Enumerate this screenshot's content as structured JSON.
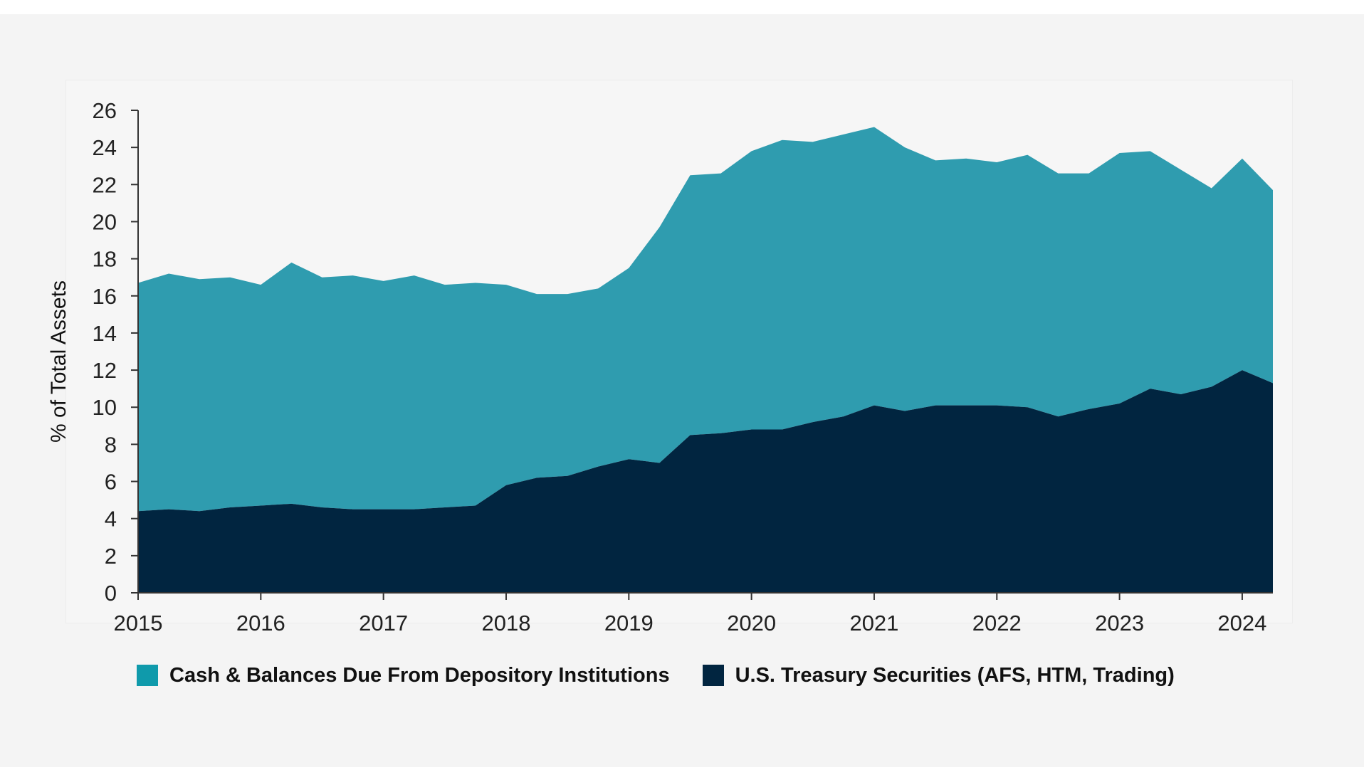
{
  "chart_data": {
    "type": "area",
    "stacked": true,
    "ylabel": "% of Total Assets",
    "ylim": [
      0,
      26
    ],
    "yticks": [
      0,
      2,
      4,
      6,
      8,
      10,
      12,
      14,
      16,
      18,
      20,
      22,
      24,
      26
    ],
    "xlim": [
      2015,
      2024.25
    ],
    "xticks": [
      2015,
      2016,
      2017,
      2018,
      2019,
      2020,
      2021,
      2022,
      2023,
      2024
    ],
    "grid": false,
    "legend": "bottom",
    "x": [
      2015.0,
      2015.25,
      2015.5,
      2015.75,
      2016.0,
      2016.25,
      2016.5,
      2016.75,
      2017.0,
      2017.25,
      2017.5,
      2017.75,
      2018.0,
      2018.25,
      2018.5,
      2018.75,
      2019.0,
      2019.25,
      2019.5,
      2019.75,
      2020.0,
      2020.25,
      2020.5,
      2020.75,
      2021.0,
      2021.25,
      2021.5,
      2021.75,
      2022.0,
      2022.25,
      2022.5,
      2022.75,
      2023.0,
      2023.25,
      2023.5,
      2023.75,
      2024.0,
      2024.25
    ],
    "series": [
      {
        "name": "U.S. Treasury Securities (AFS, HTM, Trading)",
        "color": "#012540",
        "values": [
          4.4,
          4.5,
          4.4,
          4.6,
          4.7,
          4.8,
          4.6,
          4.5,
          4.5,
          4.5,
          4.6,
          4.7,
          5.8,
          6.2,
          6.3,
          6.8,
          7.2,
          7.0,
          8.5,
          8.6,
          8.8,
          8.8,
          9.2,
          9.5,
          10.1,
          9.8,
          10.1,
          10.1,
          10.1,
          10.0,
          9.5,
          9.9,
          10.2,
          11.0,
          10.7,
          11.1,
          12.0,
          11.3
        ]
      },
      {
        "name": "Cash & Balances Due From Depository Institutions",
        "color": "#2f9caf",
        "legend_color": "#0f9aab",
        "total_values": [
          16.7,
          17.2,
          16.9,
          17.0,
          16.6,
          17.8,
          17.0,
          17.1,
          16.8,
          17.1,
          16.6,
          16.7,
          16.6,
          16.1,
          16.1,
          16.4,
          17.5,
          19.7,
          22.5,
          22.6,
          23.8,
          24.4,
          24.3,
          24.7,
          25.1,
          24.0,
          23.3,
          23.4,
          23.2,
          23.6,
          22.6,
          22.6,
          23.7,
          23.8,
          22.8,
          21.8,
          23.4,
          21.7
        ]
      }
    ],
    "legend_entries": [
      {
        "label": "Cash & Balances Due From Depository Institutions",
        "color": "#0f9aab"
      },
      {
        "label": "U.S. Treasury Securities (AFS, HTM, Trading)",
        "color": "#012540"
      }
    ]
  }
}
